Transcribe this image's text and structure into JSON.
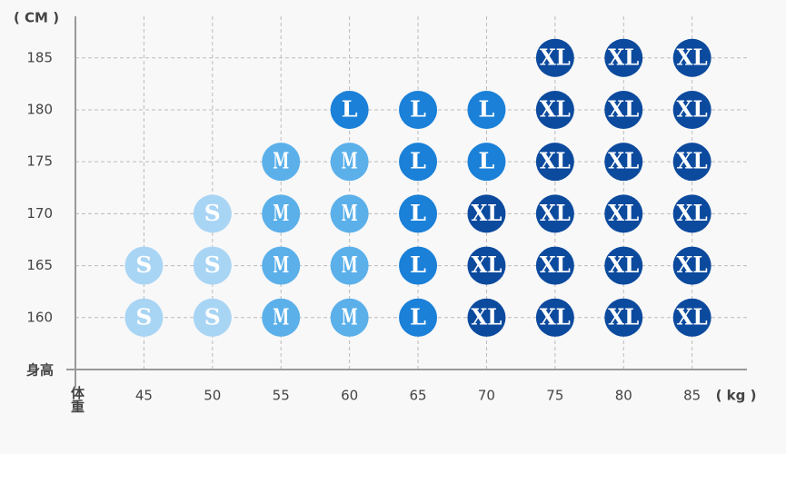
{
  "chart_data": {
    "type": "scatter",
    "x_label": "体重",
    "y_label": "身高",
    "x_unit_label": "( kg )",
    "y_unit_label": "( CM )",
    "xlim": [
      40,
      89
    ],
    "ylim": [
      155,
      189
    ],
    "xticks": [
      45,
      50,
      55,
      60,
      65,
      70,
      75,
      80,
      85
    ],
    "yticks": [
      160,
      165,
      170,
      175,
      180,
      185
    ],
    "grid": true,
    "series": [
      {
        "name": "S",
        "color": "#a9d5f5",
        "x": [
          45,
          45,
          50,
          50,
          50
        ],
        "values": [
          160,
          165,
          160,
          165,
          170
        ]
      },
      {
        "name": "M",
        "color": "#5bb0ea",
        "x": [
          55,
          55,
          55,
          55,
          60,
          60,
          60,
          60
        ],
        "values": [
          160,
          165,
          170,
          175,
          160,
          165,
          170,
          175
        ]
      },
      {
        "name": "L",
        "color": "#1a80d8",
        "x": [
          60,
          65,
          65,
          65,
          65,
          65,
          70,
          70
        ],
        "values": [
          180,
          160,
          165,
          170,
          175,
          180,
          175,
          180
        ]
      },
      {
        "name": "XL",
        "color": "#0c4a9e",
        "x": [
          70,
          70,
          70,
          75,
          75,
          75,
          75,
          75,
          75,
          80,
          80,
          80,
          80,
          80,
          80,
          85,
          85,
          85,
          85,
          85,
          85
        ],
        "values": [
          160,
          165,
          170,
          160,
          165,
          170,
          175,
          180,
          185,
          160,
          165,
          170,
          175,
          180,
          185,
          160,
          165,
          170,
          175,
          180,
          185
        ]
      }
    ]
  }
}
